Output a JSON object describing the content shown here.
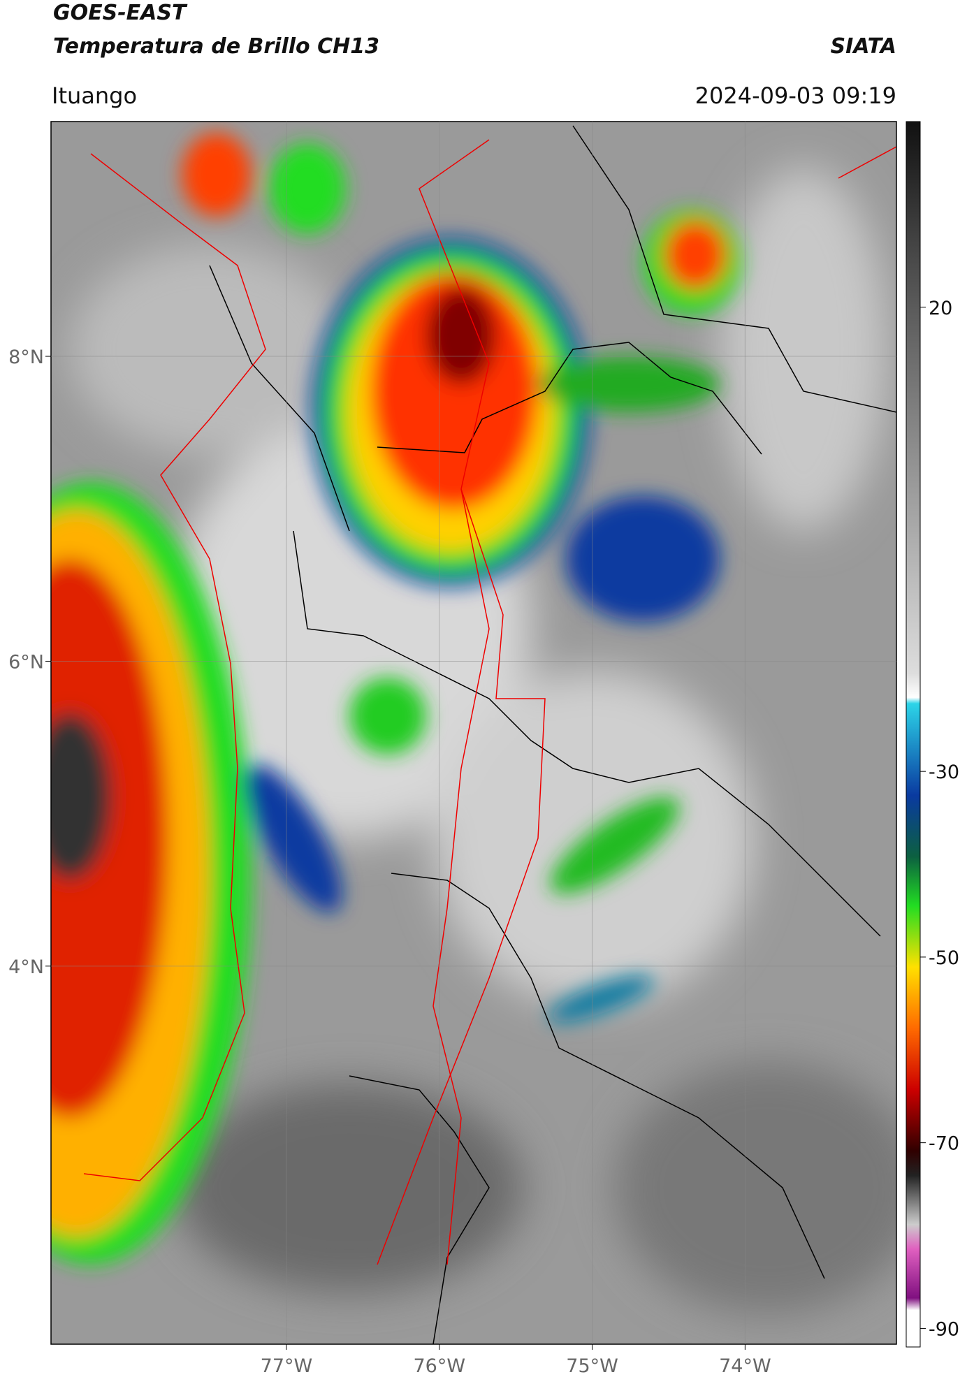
{
  "chart_data": {
    "type": "map",
    "title": "GOES-EAST",
    "subtitle": "Temperatura de Brillo CH13",
    "source": "SIATA",
    "location": "Ituango",
    "datetime": "2024-09-03 09:19",
    "xlim": [
      -78.54,
      -73.01
    ],
    "ylim": [
      1.52,
      9.54
    ],
    "xticks": [
      {
        "value": -77,
        "label": "77°W"
      },
      {
        "value": -76,
        "label": "76°W"
      },
      {
        "value": -75,
        "label": "75°W"
      },
      {
        "value": -74,
        "label": "74°W"
      }
    ],
    "yticks": [
      {
        "value": 4,
        "label": "4°N"
      },
      {
        "value": 6,
        "label": "6°N"
      },
      {
        "value": 8,
        "label": "8°N"
      }
    ],
    "colorbar": {
      "lim": [
        -92,
        40
      ],
      "ticks": [
        20,
        -30,
        -50,
        -70,
        -90
      ]
    },
    "grid": true
  }
}
